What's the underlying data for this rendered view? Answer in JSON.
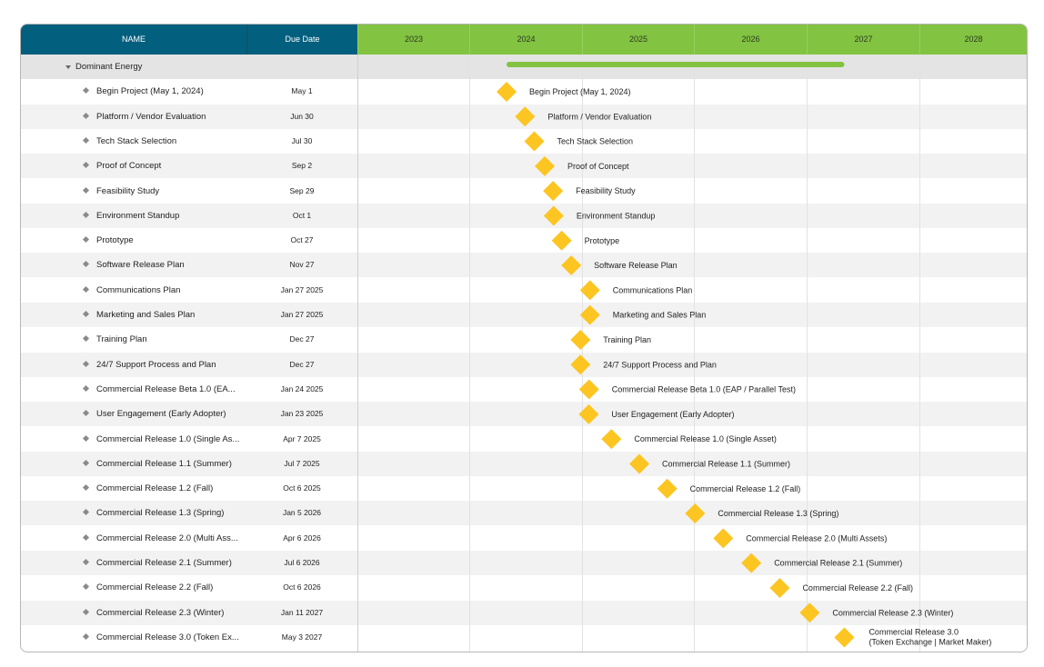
{
  "header": {
    "name_col": "NAME",
    "date_col": "Due Date",
    "years": [
      "2023",
      "2024",
      "2025",
      "2026",
      "2027",
      "2028"
    ]
  },
  "colors": {
    "header_bg": "#025f7e",
    "year_header_bg": "#82c341",
    "summary_bar": "#82c341",
    "milestone": "#fdc521"
  },
  "chart_data": {
    "type": "gantt",
    "x_range": [
      "2023-01-01",
      "2029-01-01"
    ],
    "group": {
      "name": "Dominant Energy",
      "expanded": true,
      "start": "2024-05-01",
      "end": "2027-05-03"
    },
    "tasks": [
      {
        "name": "Begin Project (May 1, 2024)",
        "date_label": "May 1",
        "date": "2024-05-01",
        "label": "Begin Project (May 1, 2024)"
      },
      {
        "name": "Platform / Vendor Evaluation",
        "date_label": "Jun 30",
        "date": "2024-06-30",
        "label": "Platform / Vendor Evaluation"
      },
      {
        "name": "Tech Stack Selection",
        "date_label": "Jul 30",
        "date": "2024-07-30",
        "label": "Tech Stack Selection"
      },
      {
        "name": "Proof of Concept",
        "date_label": "Sep 2",
        "date": "2024-09-02",
        "label": "Proof of Concept"
      },
      {
        "name": "Feasibility Study",
        "date_label": "Sep 29",
        "date": "2024-09-29",
        "label": "Feasibility Study"
      },
      {
        "name": "Environment Standup",
        "date_label": "Oct 1",
        "date": "2024-10-01",
        "label": "Environment Standup"
      },
      {
        "name": "Prototype",
        "date_label": "Oct 27",
        "date": "2024-10-27",
        "label": "Prototype"
      },
      {
        "name": "Software Release Plan",
        "date_label": "Nov 27",
        "date": "2024-11-27",
        "label": "Software Release Plan"
      },
      {
        "name": "Communications Plan",
        "date_label": "Jan 27 2025",
        "date": "2025-01-27",
        "label": "Communications Plan"
      },
      {
        "name": "Marketing and Sales Plan",
        "date_label": "Jan 27 2025",
        "date": "2025-01-27",
        "label": "Marketing and Sales Plan"
      },
      {
        "name": "Training Plan",
        "date_label": "Dec 27",
        "date": "2024-12-27",
        "label": "Training Plan"
      },
      {
        "name": "24/7 Support Process and Plan",
        "date_label": "Dec 27",
        "date": "2024-12-27",
        "label": "24/7 Support Process and Plan"
      },
      {
        "name": "Commercial Release Beta 1.0 (EA...",
        "date_label": "Jan 24 2025",
        "date": "2025-01-24",
        "label": "Commercial Release Beta 1.0 (EAP / Parallel Test)"
      },
      {
        "name": "User Engagement (Early Adopter)",
        "date_label": "Jan 23 2025",
        "date": "2025-01-23",
        "label": "User Engagement (Early Adopter)"
      },
      {
        "name": "Commercial Release 1.0 (Single As...",
        "date_label": "Apr 7 2025",
        "date": "2025-04-07",
        "label": "Commercial Release 1.0 (Single Asset)"
      },
      {
        "name": "Commercial Release 1.1 (Summer)",
        "date_label": "Jul 7 2025",
        "date": "2025-07-07",
        "label": "Commercial Release 1.1 (Summer)"
      },
      {
        "name": "Commercial Release 1.2 (Fall)",
        "date_label": "Oct 6 2025",
        "date": "2025-10-06",
        "label": "Commercial Release 1.2 (Fall)"
      },
      {
        "name": "Commercial Release 1.3 (Spring)",
        "date_label": "Jan 5 2026",
        "date": "2026-01-05",
        "label": "Commercial Release 1.3 (Spring)"
      },
      {
        "name": "Commercial Release 2.0 (Multi Ass...",
        "date_label": "Apr 6 2026",
        "date": "2026-04-06",
        "label": "Commercial Release 2.0 (Multi Assets)"
      },
      {
        "name": "Commercial Release 2.1 (Summer)",
        "date_label": "Jul 6 2026",
        "date": "2026-07-06",
        "label": "Commercial Release 2.1 (Summer)"
      },
      {
        "name": "Commercial Release 2.2 (Fall)",
        "date_label": "Oct 6 2026",
        "date": "2026-10-06",
        "label": "Commercial Release 2.2 (Fall)"
      },
      {
        "name": "Commercial Release 2.3 (Winter)",
        "date_label": "Jan 11 2027",
        "date": "2027-01-11",
        "label": "Commercial Release 2.3 (Winter)"
      },
      {
        "name": "Commercial Release 3.0 (Token Ex...",
        "date_label": "May 3 2027",
        "date": "2027-05-03",
        "label": [
          "Commercial Release 3.0",
          "(Token Exchange | Market Maker)"
        ]
      }
    ]
  }
}
